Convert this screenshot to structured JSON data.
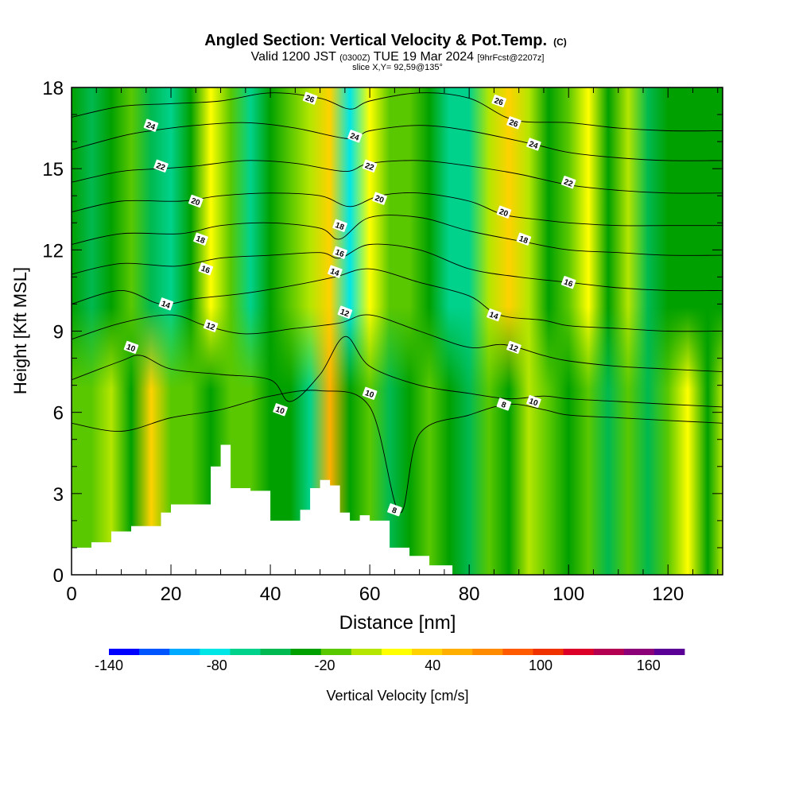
{
  "chart_data": {
    "type": "heatmap",
    "title": "Angled Section: Vertical Velocity & Pot.Temp.",
    "title_tag": "(C)",
    "subtitle": {
      "valid": "Valid 1200 JST",
      "utc": "(0300Z)",
      "date": "TUE 19 Mar 2024",
      "fcst": "[9hrFcst@2207z]"
    },
    "slice_label": "slice X,Y= 92,59@135°",
    "xlabel": "Distance [nm]",
    "ylabel": "Height [Kft MSL]",
    "xlim": [
      0,
      131
    ],
    "ylim": [
      0,
      18
    ],
    "xticks": [
      "0",
      "20",
      "40",
      "60",
      "80",
      "100",
      "120"
    ],
    "yticks": [
      "0",
      "3",
      "6",
      "9",
      "12",
      "15",
      "18"
    ],
    "colorbar": {
      "label": "Vertical Velocity [cm/s]",
      "range": [
        -140,
        180
      ],
      "step": 20,
      "tick_labels": [
        "-140",
        "-80",
        "-20",
        "40",
        "100",
        "160"
      ],
      "colors": [
        "#0000ff",
        "#0055ff",
        "#00aaff",
        "#00e6e6",
        "#00d28c",
        "#00b950",
        "#00a000",
        "#5ac800",
        "#b4e600",
        "#ffff00",
        "#ffd200",
        "#ffaf00",
        "#ff8c00",
        "#ff5a00",
        "#f03200",
        "#dc0028",
        "#b40050",
        "#8c0078",
        "#5a0096"
      ]
    },
    "vertical_velocity_bands": {
      "x": [
        0,
        4,
        8,
        12,
        16,
        20,
        24,
        28,
        32,
        36,
        40,
        44,
        48,
        52,
        56,
        60,
        64,
        68,
        72,
        76,
        80,
        84,
        88,
        92,
        96,
        100,
        104,
        108,
        112,
        116,
        120,
        124,
        128,
        131
      ],
      "upper_values": [
        -5,
        -25,
        -10,
        15,
        -40,
        -45,
        -10,
        55,
        10,
        -45,
        -15,
        5,
        20,
        75,
        -70,
        40,
        15,
        10,
        -10,
        -55,
        -50,
        30,
        60,
        25,
        -20,
        5,
        40,
        -10,
        20,
        -40,
        -10,
        -15,
        -20,
        -5
      ],
      "lower_values": [
        0,
        15,
        20,
        -20,
        75,
        5,
        10,
        -10,
        5,
        0,
        -10,
        -20,
        -55,
        95,
        -15,
        5,
        -30,
        -20,
        0,
        -15,
        -30,
        10,
        -10,
        20,
        5,
        -20,
        10,
        -30,
        5,
        -35,
        10,
        55,
        -10,
        20
      ]
    },
    "terrain_kft": {
      "x": [
        0,
        4,
        8,
        12,
        16,
        18,
        20,
        24,
        28,
        30,
        32,
        36,
        40,
        44,
        46,
        48,
        50,
        52,
        54,
        56,
        58,
        60,
        64,
        68,
        72,
        76
      ],
      "y": [
        1.0,
        1.2,
        1.6,
        1.8,
        1.8,
        2.3,
        2.6,
        2.6,
        4.0,
        4.8,
        3.2,
        3.1,
        2.0,
        2.0,
        2.4,
        3.2,
        3.5,
        3.3,
        2.3,
        2.0,
        2.2,
        2.0,
        1.0,
        0.7,
        0.35,
        0.35
      ]
    },
    "theta_isentropes": [
      {
        "level": 8,
        "x": [
          0,
          10,
          20,
          30,
          40,
          50,
          60,
          66,
          70,
          80,
          88,
          95,
          100,
          110,
          120,
          131
        ],
        "y": [
          5.6,
          5.3,
          5.8,
          6.1,
          6.6,
          6.8,
          6.2,
          2.3,
          5.2,
          5.9,
          6.3,
          6.1,
          5.9,
          5.8,
          5.7,
          5.6
        ]
      },
      {
        "level": 10,
        "x": [
          0,
          10,
          14,
          20,
          30,
          40,
          44,
          50,
          55,
          60,
          70,
          80,
          88,
          95,
          100,
          110,
          120,
          131
        ],
        "y": [
          7.2,
          7.9,
          8.1,
          7.6,
          7.4,
          7.2,
          6.4,
          7.4,
          8.8,
          7.7,
          7.0,
          6.7,
          6.5,
          6.6,
          6.5,
          6.4,
          6.3,
          6.2
        ]
      },
      {
        "level": 12,
        "x": [
          0,
          10,
          20,
          27,
          35,
          45,
          54,
          60,
          70,
          80,
          87,
          95,
          100,
          110,
          120,
          131
        ],
        "y": [
          8.7,
          9.3,
          9.6,
          9.2,
          8.9,
          9.1,
          9.3,
          9.6,
          9.0,
          8.4,
          8.5,
          8.1,
          7.9,
          7.7,
          7.6,
          7.5
        ]
      },
      {
        "level": 14,
        "x": [
          0,
          10,
          18,
          25,
          35,
          45,
          53,
          60,
          70,
          80,
          86,
          95,
          100,
          110,
          120,
          131
        ],
        "y": [
          10.0,
          10.5,
          10.0,
          10.2,
          10.4,
          10.7,
          11.0,
          11.3,
          10.8,
          10.3,
          9.6,
          9.4,
          9.2,
          9.1,
          9.0,
          9.0
        ]
      },
      {
        "level": 16,
        "x": [
          0,
          10,
          21,
          30,
          40,
          50,
          54,
          60,
          70,
          80,
          90,
          100,
          110,
          120,
          131
        ],
        "y": [
          11.1,
          11.5,
          11.4,
          11.7,
          11.8,
          11.9,
          11.7,
          12.2,
          12.0,
          11.3,
          11.0,
          10.8,
          10.6,
          10.5,
          10.5
        ]
      },
      {
        "level": 18,
        "x": [
          0,
          10,
          22,
          30,
          40,
          50,
          54,
          60,
          70,
          80,
          91,
          100,
          110,
          120,
          131
        ],
        "y": [
          12.2,
          12.6,
          12.6,
          12.9,
          13.0,
          12.8,
          12.4,
          13.2,
          13.2,
          12.7,
          12.3,
          12.0,
          11.9,
          11.8,
          11.8
        ]
      },
      {
        "level": 20,
        "x": [
          0,
          10,
          22,
          30,
          40,
          50,
          56,
          62,
          70,
          80,
          87,
          95,
          100,
          110,
          120,
          131
        ],
        "y": [
          13.4,
          13.8,
          13.8,
          14.0,
          14.1,
          14.0,
          13.6,
          14.0,
          14.1,
          13.8,
          13.3,
          13.1,
          13.0,
          12.9,
          12.9,
          12.9
        ]
      },
      {
        "level": 22,
        "x": [
          0,
          10,
          18,
          25,
          35,
          45,
          55,
          60,
          70,
          80,
          90,
          100,
          110,
          120,
          131
        ],
        "y": [
          14.5,
          14.9,
          15.0,
          15.1,
          15.3,
          15.2,
          14.9,
          15.2,
          15.3,
          15.1,
          14.8,
          14.4,
          14.2,
          14.1,
          14.1
        ]
      },
      {
        "level": 24,
        "x": [
          0,
          10,
          16,
          25,
          35,
          45,
          56,
          60,
          70,
          80,
          93,
          100,
          110,
          120,
          131
        ],
        "y": [
          15.7,
          16.2,
          16.4,
          16.6,
          16.7,
          16.5,
          16.1,
          16.4,
          16.6,
          16.4,
          15.9,
          15.6,
          15.4,
          15.3,
          15.3
        ]
      },
      {
        "level": 26,
        "x": [
          0,
          10,
          20,
          30,
          40,
          50,
          56,
          60,
          70,
          80,
          89,
          100,
          110,
          120,
          131
        ],
        "y": [
          16.9,
          17.3,
          17.4,
          17.5,
          17.8,
          17.6,
          17.2,
          17.5,
          17.8,
          17.6,
          16.8,
          16.7,
          16.5,
          16.4,
          16.4
        ]
      }
    ],
    "contour_labels": [
      {
        "text": "24",
        "x": 16,
        "y": 16.6
      },
      {
        "text": "22",
        "x": 18,
        "y": 15.1
      },
      {
        "text": "20",
        "x": 25,
        "y": 13.8
      },
      {
        "text": "18",
        "x": 26,
        "y": 12.4
      },
      {
        "text": "16",
        "x": 27,
        "y": 11.3
      },
      {
        "text": "14",
        "x": 19,
        "y": 10.0
      },
      {
        "text": "12",
        "x": 28,
        "y": 9.2
      },
      {
        "text": "10",
        "x": 12,
        "y": 8.4
      },
      {
        "text": "26",
        "x": 48,
        "y": 17.6
      },
      {
        "text": "24",
        "x": 57,
        "y": 16.2
      },
      {
        "text": "22",
        "x": 60,
        "y": 15.1
      },
      {
        "text": "20",
        "x": 62,
        "y": 13.9
      },
      {
        "text": "18",
        "x": 54,
        "y": 12.9
      },
      {
        "text": "16",
        "x": 54,
        "y": 11.9
      },
      {
        "text": "14",
        "x": 53,
        "y": 11.2
      },
      {
        "text": "12",
        "x": 55,
        "y": 9.7
      },
      {
        "text": "10",
        "x": 60,
        "y": 6.7
      },
      {
        "text": "10",
        "x": 42,
        "y": 6.1
      },
      {
        "text": "8",
        "x": 65,
        "y": 2.4
      },
      {
        "text": "26",
        "x": 86,
        "y": 17.5
      },
      {
        "text": "26",
        "x": 89,
        "y": 16.7
      },
      {
        "text": "24",
        "x": 93,
        "y": 15.9
      },
      {
        "text": "22",
        "x": 100,
        "y": 14.5
      },
      {
        "text": "20",
        "x": 87,
        "y": 13.4
      },
      {
        "text": "18",
        "x": 91,
        "y": 12.4
      },
      {
        "text": "16",
        "x": 100,
        "y": 10.8
      },
      {
        "text": "14",
        "x": 85,
        "y": 9.6
      },
      {
        "text": "12",
        "x": 89,
        "y": 8.4
      },
      {
        "text": "10",
        "x": 93,
        "y": 6.4
      },
      {
        "text": "8",
        "x": 87,
        "y": 6.3
      }
    ]
  }
}
